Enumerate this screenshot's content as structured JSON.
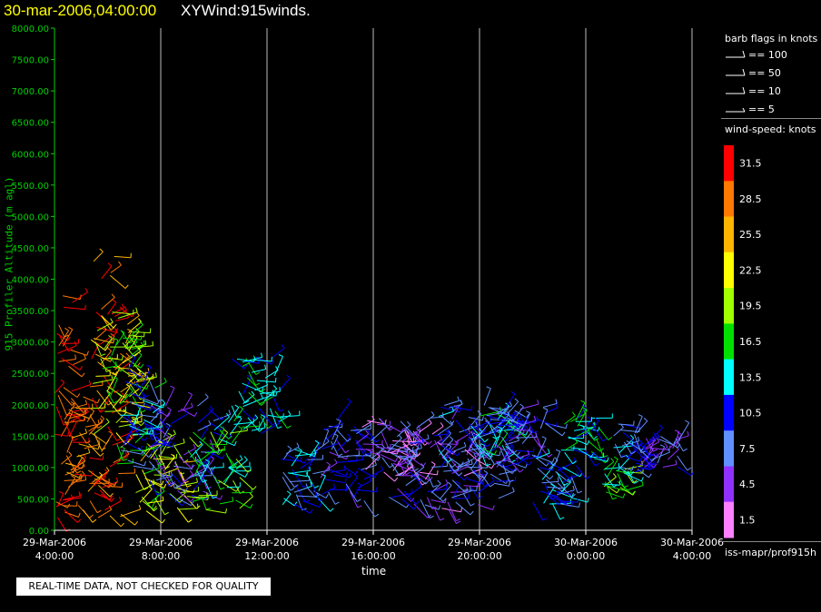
{
  "header": {
    "datetime": "30-mar-2006,04:00:00",
    "plot_name": "XYWind:915winds."
  },
  "notice": "REAL-TIME DATA, NOT CHECKED FOR QUALITY",
  "legend": {
    "barb_title": "barb flags in knots",
    "barb_items": [
      "== 100",
      "== 50",
      "== 10",
      "== 5"
    ],
    "speed_title": "wind-speed: knots",
    "source": "iss-mapr/prof915h",
    "scale": [
      {
        "label": "31.5",
        "color": "#ff0000"
      },
      {
        "label": "28.5",
        "color": "#ff7800"
      },
      {
        "label": "25.5",
        "color": "#ffb400"
      },
      {
        "label": "22.5",
        "color": "#ffff00"
      },
      {
        "label": "19.5",
        "color": "#a0ff00"
      },
      {
        "label": "16.5",
        "color": "#00e000"
      },
      {
        "label": "13.5",
        "color": "#00ffff"
      },
      {
        "label": "10.5",
        "color": "#0000ff"
      },
      {
        "label": "7.5",
        "color": "#6090ff"
      },
      {
        "label": "4.5",
        "color": "#9030ff"
      },
      {
        "label": "1.5",
        "color": "#ff80ff"
      }
    ]
  },
  "chart_data": {
    "type": "scatter",
    "ylabel": "915 Profiler Altitude (m agl)",
    "xlabel": "time",
    "ylim": [
      0,
      8000
    ],
    "xlim_hours": [
      0,
      24
    ],
    "y_ticks": [
      "0.00",
      "500.00",
      "1000.00",
      "1500.00",
      "2000.00",
      "2500.00",
      "3000.00",
      "3500.00",
      "4000.00",
      "4500.00",
      "5000.00",
      "5500.00",
      "6000.00",
      "6500.00",
      "7000.00",
      "7500.00",
      "8000.00"
    ],
    "x_ticks": [
      {
        "date": "29-Mar-2006",
        "time": "4:00:00"
      },
      {
        "date": "29-Mar-2006",
        "time": "8:00:00"
      },
      {
        "date": "29-Mar-2006",
        "time": "12:00:00"
      },
      {
        "date": "29-Mar-2006",
        "time": "16:00:00"
      },
      {
        "date": "29-Mar-2006",
        "time": "20:00:00"
      },
      {
        "date": "30-Mar-2006",
        "time": "0:00:00"
      },
      {
        "date": "30-Mar-2006",
        "time": "4:00:00"
      }
    ],
    "grid": "vertical",
    "clusters": [
      {
        "t0": 0.0,
        "t1": 0.7,
        "h0": 200,
        "h1": 3900,
        "speed": 31
      },
      {
        "t0": 0.3,
        "t1": 1.4,
        "h0": 300,
        "h1": 2200,
        "speed": 29
      },
      {
        "t0": 1.3,
        "t1": 2.5,
        "h0": 200,
        "h1": 4400,
        "speed": 30
      },
      {
        "t0": 1.3,
        "t1": 3.0,
        "h0": 1500,
        "h1": 3500,
        "speed": 22
      },
      {
        "t0": 1.8,
        "t1": 3.2,
        "h0": 2000,
        "h1": 3200,
        "speed": 19
      },
      {
        "t0": 2.3,
        "t1": 3.8,
        "h0": 1000,
        "h1": 2700,
        "speed": 12
      },
      {
        "t0": 3.0,
        "t1": 5.0,
        "h0": 300,
        "h1": 1400,
        "speed": 21
      },
      {
        "t0": 3.5,
        "t1": 6.0,
        "h0": 500,
        "h1": 2000,
        "speed": 8
      },
      {
        "t0": 5.0,
        "t1": 7.0,
        "h0": 300,
        "h1": 1600,
        "speed": 16
      },
      {
        "t0": 6.5,
        "t1": 8.5,
        "h0": 1500,
        "h1": 2800,
        "speed": 13
      },
      {
        "t0": 8.5,
        "t1": 10.0,
        "h0": 400,
        "h1": 1300,
        "speed": 10
      },
      {
        "t0": 10.0,
        "t1": 12.0,
        "h0": 400,
        "h1": 1800,
        "speed": 8
      },
      {
        "t0": 11.5,
        "t1": 14.0,
        "h0": 800,
        "h1": 1800,
        "speed": 5
      },
      {
        "t0": 12.5,
        "t1": 16.0,
        "h0": 300,
        "h1": 1600,
        "speed": 6
      },
      {
        "t0": 14.0,
        "t1": 17.0,
        "h0": 500,
        "h1": 2000,
        "speed": 9
      },
      {
        "t0": 15.5,
        "t1": 17.5,
        "h0": 1300,
        "h1": 2000,
        "speed": 12
      },
      {
        "t0": 16.5,
        "t1": 18.5,
        "h0": 1000,
        "h1": 2000,
        "speed": 8
      },
      {
        "t0": 18.0,
        "t1": 19.5,
        "h0": 400,
        "h1": 1200,
        "speed": 11
      },
      {
        "t0": 19.0,
        "t1": 20.5,
        "h0": 1000,
        "h1": 1800,
        "speed": 14
      },
      {
        "t0": 20.5,
        "t1": 21.5,
        "h0": 600,
        "h1": 1000,
        "speed": 16
      },
      {
        "t0": 21.0,
        "t1": 22.0,
        "h0": 900,
        "h1": 1700,
        "speed": 10
      },
      {
        "t0": 22.0,
        "t1": 23.5,
        "h0": 1000,
        "h1": 1500,
        "speed": 7
      }
    ]
  }
}
